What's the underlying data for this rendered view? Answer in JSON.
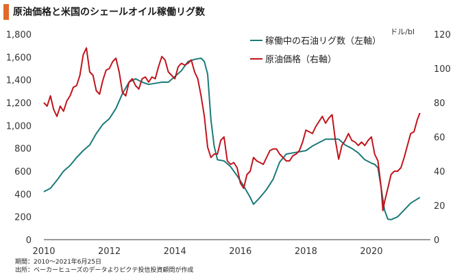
{
  "title": "原油価格と米国のシェールオイル稼働リグ数",
  "colors": {
    "accent": "#e06a2a",
    "rigs": "#1a7a78",
    "oil": "#c0131a",
    "axis": "#333333"
  },
  "notes": {
    "period": "期間：2010～2021年6月25日",
    "source": "出所：ベーカーヒューズのデータよりピクテ投信投資顧問が作成"
  },
  "chart_data": {
    "type": "line",
    "title": "原油価格と米国のシェールオイル稼働リグ数",
    "xlabel": "",
    "x_ticks": [
      "2010",
      "2012",
      "2014",
      "2016",
      "2018",
      "2020"
    ],
    "xlim": [
      2010,
      2021.8
    ],
    "left_axis": {
      "label": "",
      "ylim": [
        0,
        1800
      ],
      "ticks": [
        "0",
        "200",
        "400",
        "600",
        "800",
        "1,000",
        "1,200",
        "1,400",
        "1,600",
        "1,800"
      ]
    },
    "right_axis": {
      "label": "ドル/bl",
      "ylim": [
        0,
        120
      ],
      "ticks": [
        "0",
        "20",
        "40",
        "60",
        "80",
        "100",
        "120"
      ]
    },
    "legend": {
      "placement": "top-right"
    },
    "series": [
      {
        "name": "稼働中の石油リグ数（左軸）",
        "axis": "left",
        "x": [
          2010.0,
          2010.2,
          2010.4,
          2010.6,
          2010.8,
          2011.0,
          2011.2,
          2011.4,
          2011.6,
          2011.8,
          2012.0,
          2012.2,
          2012.4,
          2012.6,
          2012.8,
          2013.0,
          2013.2,
          2013.4,
          2013.6,
          2013.8,
          2014.0,
          2014.2,
          2014.4,
          2014.6,
          2014.8,
          2014.9,
          2015.0,
          2015.1,
          2015.2,
          2015.3,
          2015.5,
          2015.7,
          2015.9,
          2016.1,
          2016.3,
          2016.4,
          2016.6,
          2016.8,
          2017.0,
          2017.2,
          2017.4,
          2017.6,
          2017.8,
          2018.0,
          2018.2,
          2018.4,
          2018.6,
          2018.8,
          2019.0,
          2019.2,
          2019.4,
          2019.6,
          2019.8,
          2020.0,
          2020.1,
          2020.2,
          2020.3,
          2020.4,
          2020.5,
          2020.6,
          2020.8,
          2021.0,
          2021.2,
          2021.48
        ],
        "values": [
          420,
          450,
          520,
          600,
          650,
          720,
          780,
          830,
          930,
          1010,
          1060,
          1150,
          1280,
          1380,
          1410,
          1380,
          1360,
          1370,
          1380,
          1380,
          1430,
          1480,
          1560,
          1580,
          1590,
          1560,
          1450,
          1050,
          820,
          700,
          690,
          640,
          560,
          470,
          370,
          310,
          370,
          440,
          530,
          680,
          750,
          760,
          770,
          780,
          820,
          850,
          880,
          880,
          880,
          830,
          800,
          760,
          700,
          670,
          660,
          630,
          450,
          260,
          180,
          175,
          200,
          260,
          320,
          370
        ]
      },
      {
        "name": "原油価格（右軸）",
        "axis": "right",
        "x": [
          2010.0,
          2010.1,
          2010.2,
          2010.3,
          2010.4,
          2010.5,
          2010.6,
          2010.7,
          2010.8,
          2010.9,
          2011.0,
          2011.1,
          2011.2,
          2011.3,
          2011.4,
          2011.5,
          2011.6,
          2011.7,
          2011.8,
          2011.9,
          2012.0,
          2012.1,
          2012.2,
          2012.3,
          2012.4,
          2012.5,
          2012.6,
          2012.7,
          2012.8,
          2012.9,
          2013.0,
          2013.1,
          2013.2,
          2013.3,
          2013.4,
          2013.5,
          2013.6,
          2013.7,
          2013.8,
          2013.9,
          2014.0,
          2014.1,
          2014.2,
          2014.3,
          2014.4,
          2014.5,
          2014.6,
          2014.7,
          2014.8,
          2014.9,
          2015.0,
          2015.1,
          2015.2,
          2015.3,
          2015.4,
          2015.5,
          2015.6,
          2015.7,
          2015.8,
          2015.9,
          2016.0,
          2016.1,
          2016.2,
          2016.3,
          2016.4,
          2016.5,
          2016.6,
          2016.7,
          2016.8,
          2016.9,
          2017.0,
          2017.1,
          2017.2,
          2017.3,
          2017.4,
          2017.5,
          2017.6,
          2017.7,
          2017.8,
          2017.9,
          2018.0,
          2018.1,
          2018.2,
          2018.3,
          2018.4,
          2018.5,
          2018.6,
          2018.7,
          2018.8,
          2018.9,
          2019.0,
          2019.1,
          2019.2,
          2019.3,
          2019.4,
          2019.5,
          2019.6,
          2019.7,
          2019.8,
          2019.9,
          2020.0,
          2020.1,
          2020.2,
          2020.3,
          2020.35,
          2020.4,
          2020.5,
          2020.6,
          2020.7,
          2020.8,
          2020.9,
          2021.0,
          2021.1,
          2021.2,
          2021.3,
          2021.4,
          2021.48
        ],
        "values": [
          80,
          78,
          84,
          76,
          72,
          78,
          75,
          81,
          84,
          89,
          90,
          96,
          108,
          112,
          98,
          96,
          87,
          85,
          93,
          99,
          100,
          104,
          106,
          98,
          86,
          84,
          92,
          94,
          90,
          88,
          94,
          95,
          92,
          95,
          94,
          101,
          107,
          105,
          98,
          96,
          94,
          101,
          103,
          102,
          103,
          105,
          98,
          94,
          84,
          72,
          54,
          48,
          50,
          50,
          58,
          60,
          46,
          44,
          45,
          42,
          33,
          30,
          38,
          40,
          48,
          46,
          45,
          44,
          48,
          52,
          53,
          53,
          50,
          48,
          46,
          46,
          49,
          50,
          52,
          57,
          64,
          63,
          62,
          66,
          69,
          72,
          68,
          71,
          73,
          58,
          47,
          55,
          58,
          62,
          58,
          57,
          55,
          57,
          55,
          58,
          60,
          50,
          46,
          30,
          17,
          22,
          30,
          38,
          40,
          40,
          42,
          48,
          55,
          62,
          63,
          70,
          74
        ]
      }
    ]
  }
}
